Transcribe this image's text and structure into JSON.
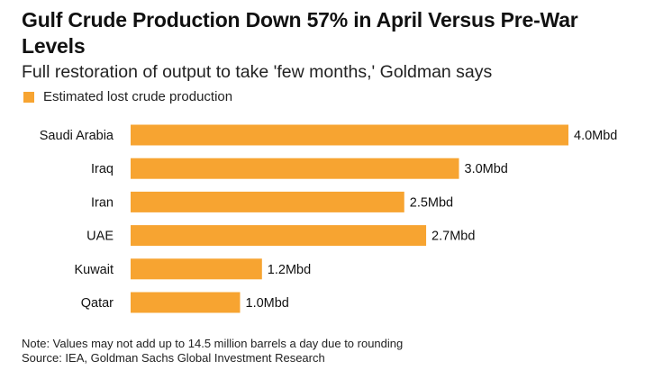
{
  "title": "Gulf Crude Production Down 57% in April Versus Pre-War Levels",
  "subtitle": "Full restoration of output to take 'few months,' Goldman says",
  "note": "Note: Values may not add up to 14.5 million barrels a day due to rounding",
  "source": "Source: IEA, Goldman Sachs Global Investment Research",
  "colors": {
    "bar": "#f7a431",
    "text": "#111111"
  },
  "chart_data": {
    "type": "bar",
    "orientation": "horizontal",
    "categories": [
      "Saudi Arabia",
      "Iraq",
      "Iran",
      "UAE",
      "Kuwait",
      "Qatar"
    ],
    "series": [
      {
        "name": "Estimated lost crude production",
        "values": [
          4.0,
          3.0,
          2.5,
          2.7,
          1.2,
          1.0
        ],
        "labels": [
          "4.0Mbd",
          "3.0Mbd",
          "2.5Mbd",
          "2.7Mbd",
          "1.2Mbd",
          "1.0Mbd"
        ]
      }
    ],
    "xlim": [
      0,
      4.0
    ],
    "grid": false,
    "legend": "top-left"
  }
}
